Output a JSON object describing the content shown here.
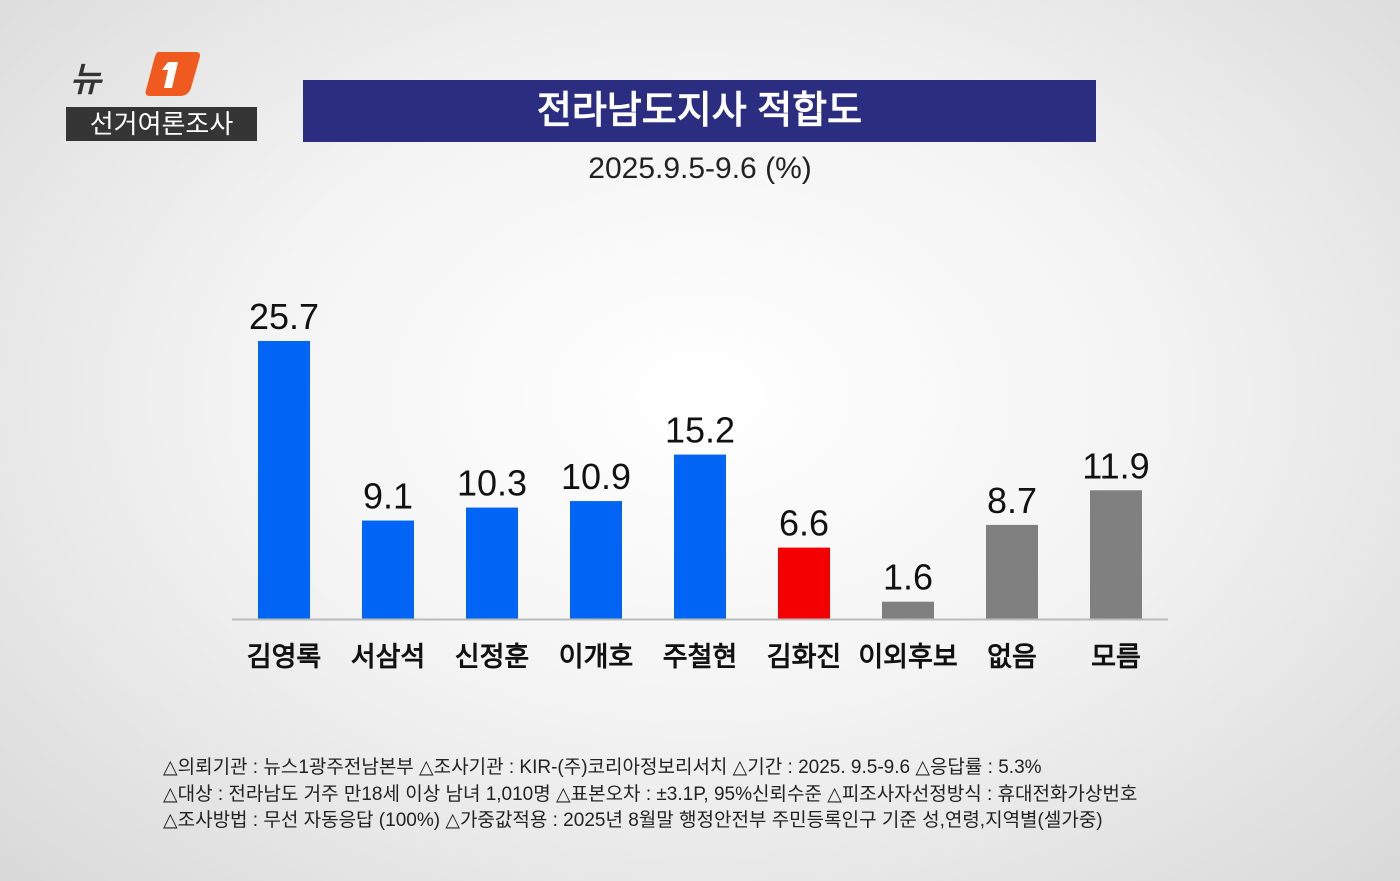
{
  "brand": {
    "logo_text": "뉴스1",
    "badge": "선거여론조사"
  },
  "title": "전라남도지사 적합도",
  "subtitle": "2025.9.5-9.6 (%)",
  "chart_data": {
    "type": "bar",
    "categories": [
      "김영록",
      "서삼석",
      "신정훈",
      "이개호",
      "주철현",
      "김화진",
      "이외후보",
      "없음",
      "모름"
    ],
    "values": [
      25.7,
      9.1,
      10.3,
      10.9,
      15.2,
      6.6,
      1.6,
      8.7,
      11.9
    ],
    "value_labels": [
      "25.7",
      "9.1",
      "10.3",
      "10.9",
      "15.2",
      "6.6",
      "1.6",
      "8.7",
      "11.9"
    ],
    "colors": [
      "#0064f5",
      "#0064f5",
      "#0064f5",
      "#0064f5",
      "#0064f5",
      "#f50000",
      "#808080",
      "#808080",
      "#808080"
    ],
    "ylim": [
      0,
      25.7
    ],
    "grid": false,
    "title": "전라남도지사 적합도",
    "subtitle": "2025.9.5-9.6 (%)"
  },
  "footer": [
    "△의뢰기관 : 뉴스1광주전남본부 △조사기관 : KIR-(주)코리아정보리서치 △기간 : 2025. 9.5-9.6  △응답률 : 5.3%",
    "△대상 : 전라남도 거주 만18세 이상 남녀 1,010명  △표본오차 : ±3.1P, 95%신뢰수준  △피조사자선정방식 : 휴대전화가상번호",
    "△조사방법 : 무선 자동응답 (100%) △가중값적용 : 2025년 8월말 행정안전부 주민등록인구 기준 성,연령,지역별(셀가중)"
  ],
  "watermark": "뉴스1"
}
